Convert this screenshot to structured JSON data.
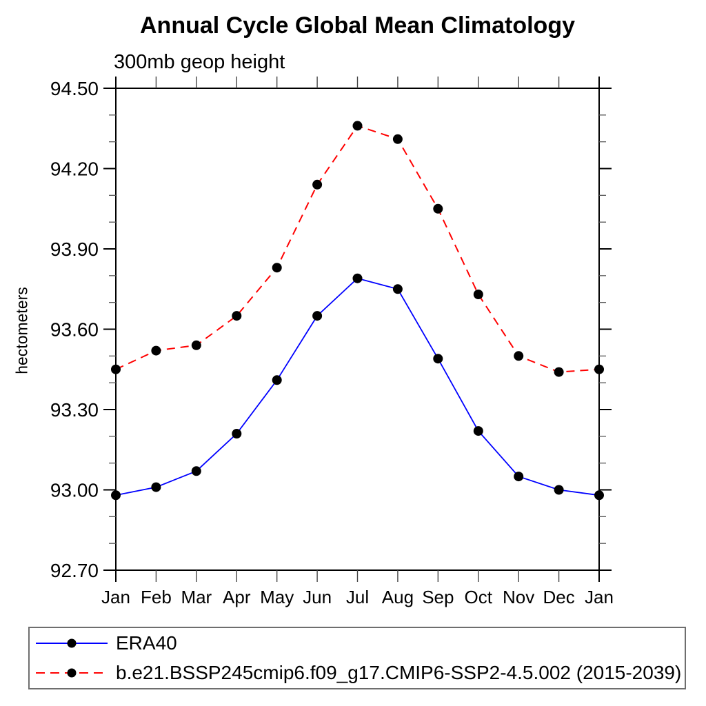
{
  "chart": {
    "title": "Annual Cycle Global Mean Climatology",
    "subtitle": "300mb geop height",
    "ylabel": "hectometers"
  },
  "chart_data": {
    "type": "line",
    "categories": [
      "Jan",
      "Feb",
      "Mar",
      "Apr",
      "May",
      "Jun",
      "Jul",
      "Aug",
      "Sep",
      "Oct",
      "Nov",
      "Dec",
      "Jan"
    ],
    "series": [
      {
        "name": "ERA40",
        "color": "#0000ff",
        "line_style": "solid",
        "marker": "circle",
        "marker_color": "#000000",
        "values": [
          92.98,
          93.01,
          93.07,
          93.21,
          93.41,
          93.65,
          93.79,
          93.75,
          93.49,
          93.22,
          93.05,
          93.0,
          92.98
        ]
      },
      {
        "name": "b.e21.BSSP245cmip6.f09_g17.CMIP6-SSP2-4.5.002 (2015-2039)",
        "color": "#ff0000",
        "line_style": "dashed",
        "marker": "circle",
        "marker_color": "#000000",
        "values": [
          93.45,
          93.52,
          93.54,
          93.65,
          93.83,
          94.14,
          94.36,
          94.31,
          94.05,
          93.73,
          93.5,
          93.44,
          93.45
        ]
      }
    ],
    "ylim": [
      92.7,
      94.5
    ],
    "ytick_labels": [
      "92.70",
      "93.00",
      "93.30",
      "93.60",
      "93.90",
      "94.20",
      "94.50"
    ],
    "ytick_step_major": 0.3,
    "ytick_step_minor": 0.1,
    "grid": false,
    "legend_position": "bottom"
  }
}
